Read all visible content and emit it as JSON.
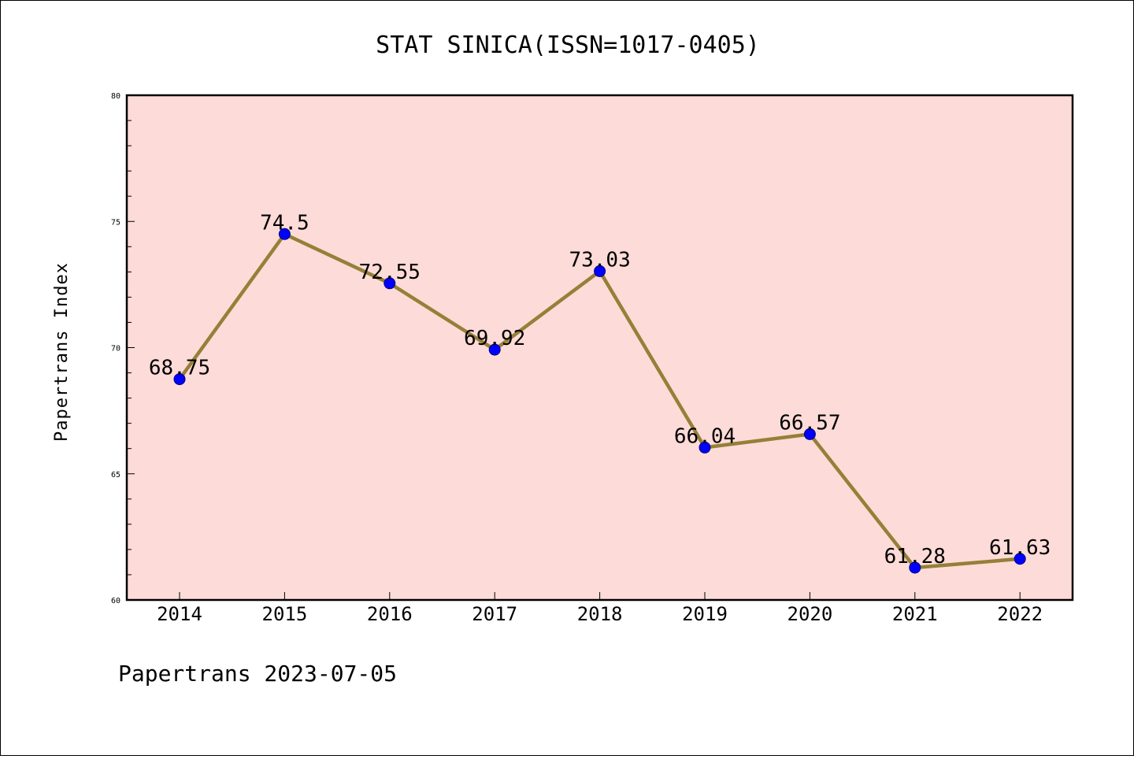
{
  "chart_data": {
    "type": "line",
    "title": "STAT SINICA(ISSN=1017-0405)",
    "xlabel": "",
    "ylabel": "Papertrans Index",
    "footer": "Papertrans 2023-07-05",
    "categories": [
      "2014",
      "2015",
      "2016",
      "2017",
      "2018",
      "2019",
      "2020",
      "2021",
      "2022"
    ],
    "series": [
      {
        "values": [
          68.75,
          74.5,
          72.55,
          69.92,
          73.03,
          66.04,
          66.57,
          61.28,
          61.63
        ]
      }
    ],
    "data_labels": [
      "68.75",
      "74.5",
      "72.55",
      "69.92",
      "73.03",
      "66.04",
      "66.57",
      "61.28",
      "61.63"
    ],
    "ylim": [
      60,
      80
    ],
    "yticks": [
      60,
      65,
      70,
      75,
      80
    ],
    "ytick_labels": [
      "60",
      "65",
      "70",
      "75",
      "80"
    ],
    "grid": false,
    "legend": "none",
    "colors": {
      "plot_background": "#fddbd8",
      "line": "#948037",
      "marker": "#0000ff",
      "marker_edge": "#000080"
    }
  }
}
